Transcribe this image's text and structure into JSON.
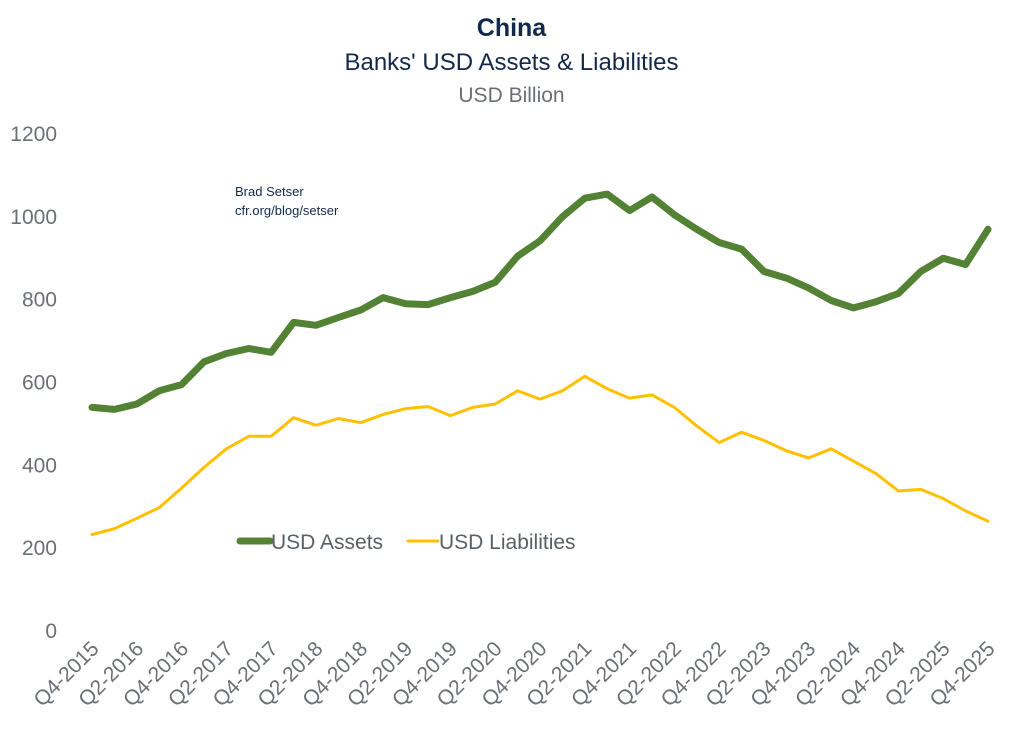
{
  "chart_data": {
    "type": "line",
    "title": "China",
    "subtitle": "Banks' USD Assets & Liabilities",
    "unit_label": "USD Billion",
    "annotation": [
      "Brad Setser",
      "cfr.org/blog/setser"
    ],
    "ylim": [
      0,
      1200
    ],
    "yticks": [
      0,
      200,
      400,
      600,
      800,
      1000,
      1200
    ],
    "xtick_labels": [
      "Q4-2015",
      "Q2-2016",
      "Q4-2016",
      "Q2-2017",
      "Q4-2017",
      "Q2-2018",
      "Q4-2018",
      "Q2-2019",
      "Q4-2019",
      "Q2-2020",
      "Q4-2020",
      "Q2-2021",
      "Q4-2021",
      "Q2-2022",
      "Q4-2022",
      "Q2-2023",
      "Q4-2023",
      "Q2-2024",
      "Q4-2024",
      "Q2-2025",
      "Q4-2025"
    ],
    "legend_position": "middle-left",
    "grid": false,
    "series": [
      {
        "name": "USD Assets",
        "color": "#548235",
        "values": [
          540,
          535,
          548,
          580,
          595,
          650,
          670,
          682,
          673,
          745,
          738,
          757,
          775,
          805,
          790,
          788,
          805,
          820,
          842,
          905,
          942,
          1000,
          1045,
          1055,
          1015,
          1048,
          1005,
          970,
          938,
          922,
          868,
          852,
          828,
          798,
          780,
          795,
          815,
          868,
          900,
          885,
          970
        ]
      },
      {
        "name": "USD Liabilities",
        "color": "#ffc000",
        "values": [
          233,
          247,
          272,
          298,
          345,
          395,
          440,
          470,
          470,
          515,
          497,
          513,
          503,
          523,
          537,
          542,
          520,
          540,
          548,
          580,
          560,
          580,
          615,
          585,
          562,
          570,
          540,
          495,
          455,
          480,
          460,
          435,
          418,
          440,
          410,
          380,
          338,
          342,
          320,
          290,
          265
        ]
      }
    ]
  }
}
